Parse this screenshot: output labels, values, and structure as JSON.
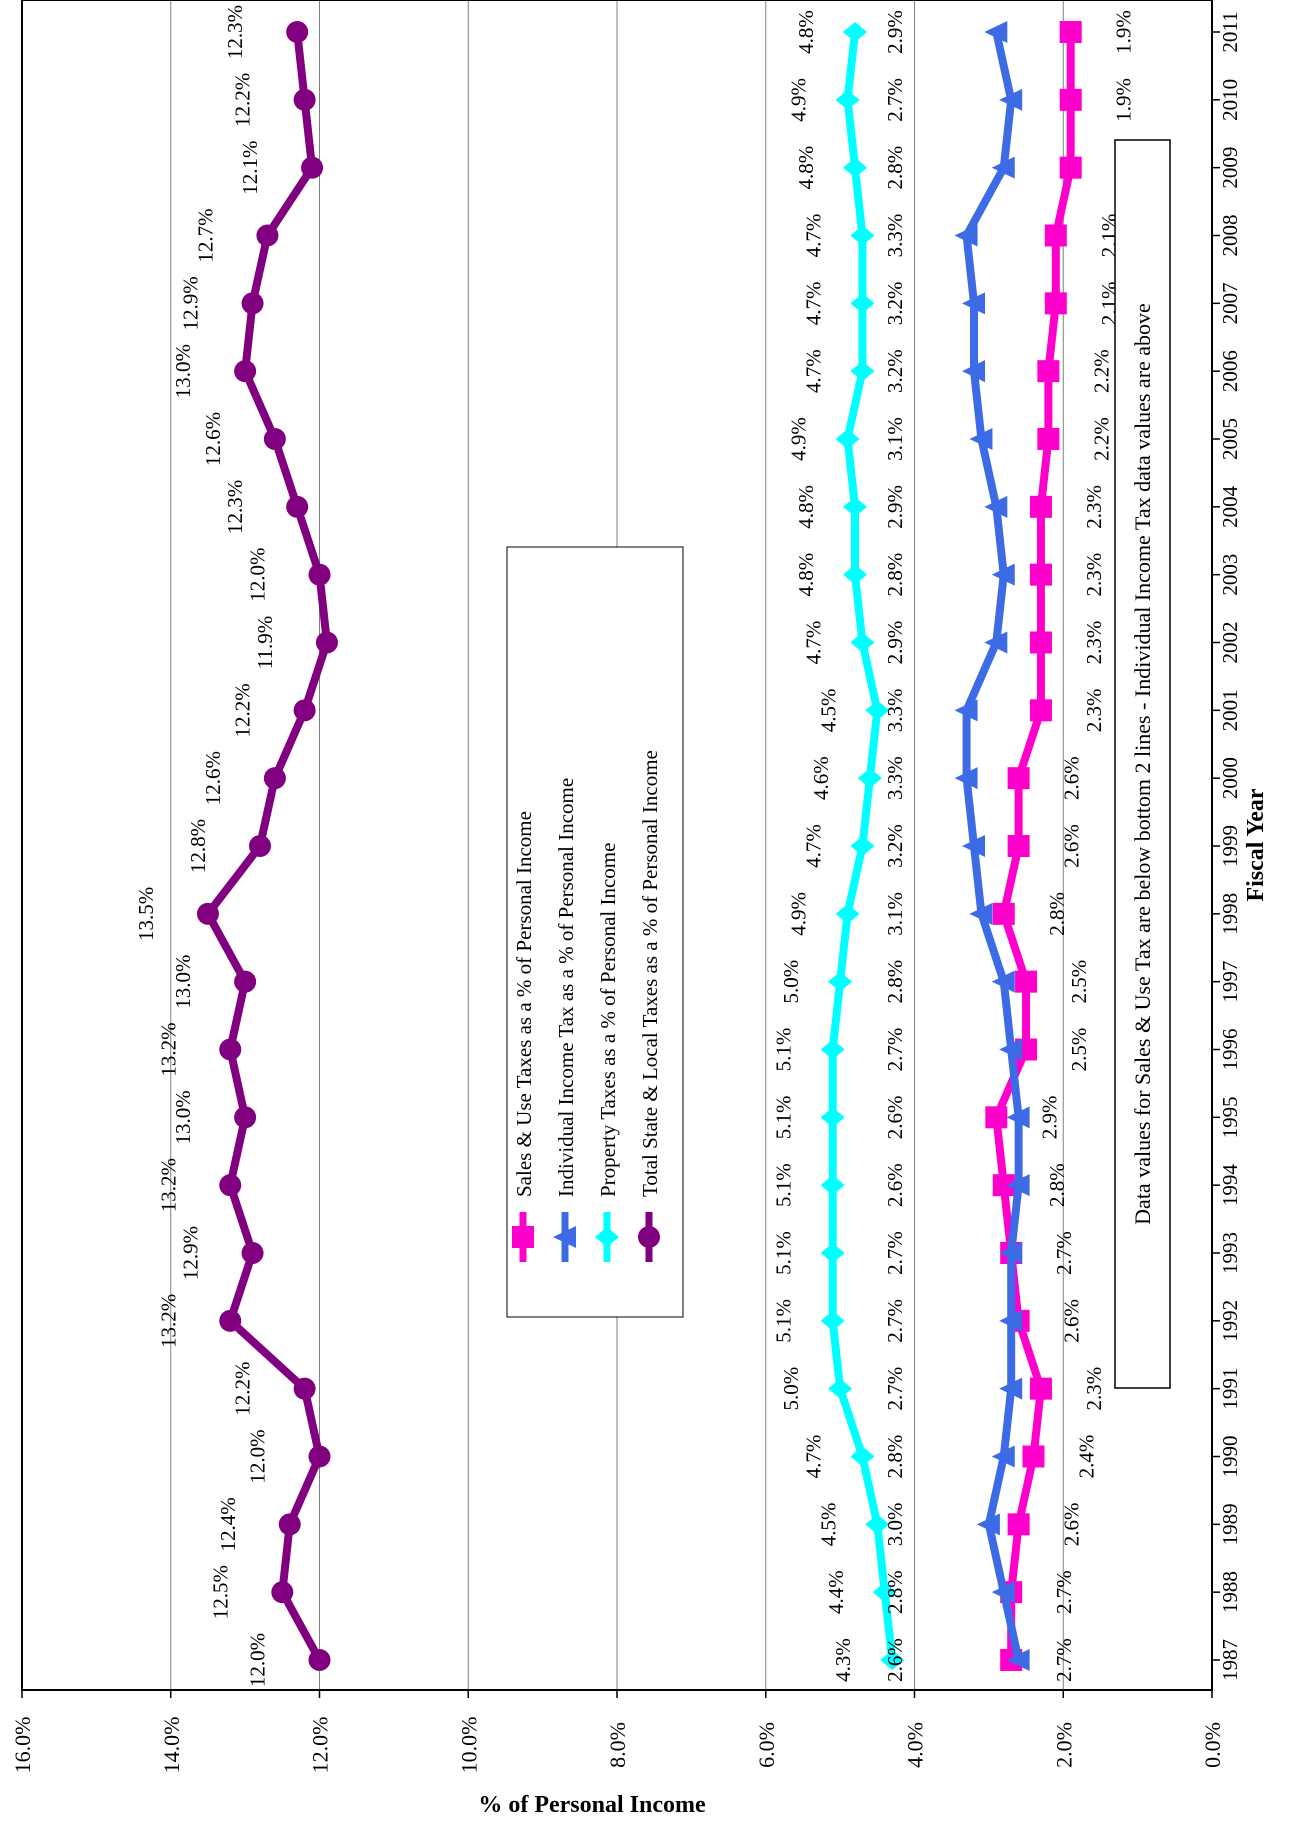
{
  "chart_data": {
    "type": "line",
    "orientation": "rotated 90 degrees clockwise (fiscal year runs top-to-bottom on the right, percent runs right-to-left)",
    "xlabel": "Fiscal Year",
    "ylabel": "% of Personal Income",
    "ylim": [
      0,
      16
    ],
    "y_ticks": [
      "0.0%",
      "2.0%",
      "4.0%",
      "6.0%",
      "8.0%",
      "10.0%",
      "12.0%",
      "14.0%",
      "16.0%"
    ],
    "grid": true,
    "categories": [
      "1987",
      "1988",
      "1989",
      "1990",
      "1991",
      "1992",
      "1993",
      "1994",
      "1995",
      "1996",
      "1997",
      "1998",
      "1999",
      "2000",
      "2001",
      "2002",
      "2003",
      "2004",
      "2005",
      "2006",
      "2007",
      "2008",
      "2009",
      "2010",
      "2011"
    ],
    "series": [
      {
        "name": "Sales & Use Taxes as a % of Personal Income",
        "color": "#ff00cc",
        "marker": "square",
        "values": [
          2.7,
          2.7,
          2.6,
          2.4,
          2.3,
          2.6,
          2.7,
          2.8,
          2.9,
          2.5,
          2.5,
          2.8,
          2.6,
          2.6,
          2.3,
          2.3,
          2.3,
          2.3,
          2.2,
          2.2,
          2.1,
          2.1,
          1.9,
          1.9,
          1.9
        ],
        "labels": [
          "2.7%",
          "2.7%",
          "2.6%",
          "2.4%",
          "2.3%",
          "2.6%",
          "2.7%",
          "2.8%",
          "2.9%",
          "2.5%",
          "2.5%",
          "2.8%",
          "2.6%",
          "2.6%",
          "2.3%",
          "2.3%",
          "2.3%",
          "2.3%",
          "2.2%",
          "2.2%",
          "2.1%",
          "2.1%",
          "1.9%",
          "1.9%",
          "1.9%"
        ]
      },
      {
        "name": "Individual Income Tax as a % of Personal Income",
        "color": "#3d6be6",
        "marker": "triangle",
        "values": [
          2.6,
          2.8,
          3.0,
          2.8,
          2.7,
          2.7,
          2.7,
          2.6,
          2.6,
          2.7,
          2.8,
          3.1,
          3.2,
          3.3,
          3.3,
          2.9,
          2.8,
          2.9,
          3.1,
          3.2,
          3.2,
          3.3,
          2.8,
          2.7,
          2.9
        ],
        "labels": [
          "2.6%",
          "2.8%",
          "3.0%",
          "2.8%",
          "2.7%",
          "2.7%",
          "2.7%",
          "2.6%",
          "2.6%",
          "2.7%",
          "2.8%",
          "3.1%",
          "3.2%",
          "3.3%",
          "3.3%",
          "2.9%",
          "2.8%",
          "2.9%",
          "3.1%",
          "3.2%",
          "3.2%",
          "3.3%",
          "2.8%",
          "2.7%",
          "2.9%"
        ]
      },
      {
        "name": "Property Taxes as a % of Personal Income",
        "color": "#00ffff",
        "marker": "diamond",
        "values": [
          4.3,
          4.4,
          4.5,
          4.7,
          5.0,
          5.1,
          5.1,
          5.1,
          5.1,
          5.1,
          5.0,
          4.9,
          4.7,
          4.6,
          4.5,
          4.7,
          4.8,
          4.8,
          4.9,
          4.7,
          4.7,
          4.7,
          4.8,
          4.9,
          4.8
        ],
        "labels": [
          "4.3%",
          "4.4%",
          "4.5%",
          "4.7%",
          "5.0%",
          "5.1%",
          "5.1%",
          "5.1%",
          "5.1%",
          "5.1%",
          "5.0%",
          "4.9%",
          "4.7%",
          "4.6%",
          "4.5%",
          "4.7%",
          "4.8%",
          "4.8%",
          "4.9%",
          "4.7%",
          "4.7%",
          "4.7%",
          "4.8%",
          "4.9%",
          "4.8%"
        ]
      },
      {
        "name": "Total State & Local Taxes as a % of Personal Income",
        "color": "#800080",
        "marker": "circle",
        "values": [
          12.0,
          12.5,
          12.4,
          12.0,
          12.2,
          13.2,
          12.9,
          13.2,
          13.0,
          13.2,
          13.0,
          13.5,
          12.8,
          12.6,
          12.2,
          11.9,
          12.0,
          12.3,
          12.6,
          13.0,
          12.9,
          12.7,
          12.1,
          12.2,
          12.3
        ],
        "labels": [
          "12.0%",
          "12.5%",
          "12.4%",
          "12.0%",
          "12.2%",
          "13.2%",
          "12.9%",
          "13.2%",
          "13.0%",
          "13.2%",
          "13.0%",
          "13.5%",
          "12.8%",
          "12.6%",
          "12.2%",
          "11.9%",
          "12.0%",
          "12.3%",
          "12.6%",
          "13.0%",
          "12.9%",
          "12.7%",
          "12.1%",
          "12.2%",
          "12.3%"
        ]
      }
    ],
    "annotation": "Data values for Sales & Use Tax are below bottom 2 lines - Individual Income Tax data values are above",
    "legend_position": "center"
  }
}
